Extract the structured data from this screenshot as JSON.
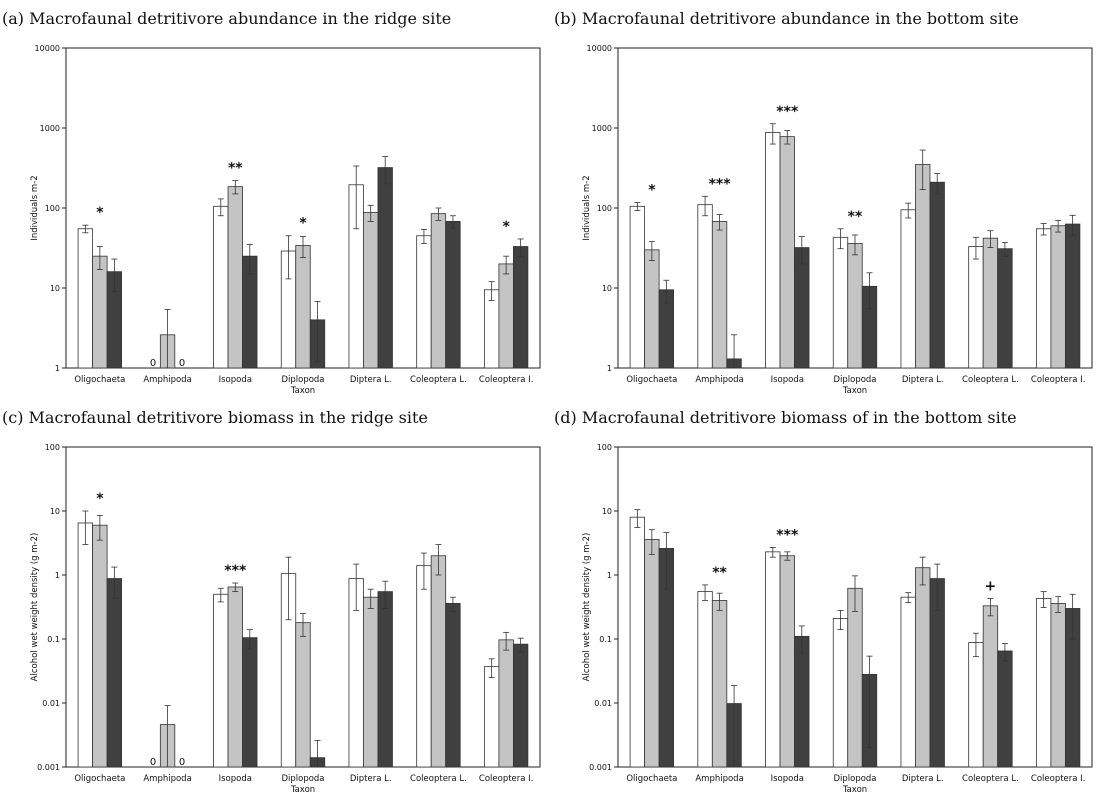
{
  "chart_data": [
    {
      "id": "a",
      "type": "bar",
      "title": "(a) Macrofaunal detritivore abundance in the ridge site",
      "xlabel": "Taxon",
      "ylabel": "Individuals m-2",
      "yscale": "log",
      "ylim": [
        1,
        10000
      ],
      "yticks": [
        "1",
        "10",
        "100",
        "1000",
        "10000"
      ],
      "categories": [
        "Oligochaeta",
        "Amphipoda",
        "Isopoda",
        "Diplopoda",
        "Diptera L.",
        "Coleoptera L.",
        "Coleoptera I."
      ],
      "series": [
        {
          "fill": "#ffffff",
          "values": [
            55,
            0,
            105,
            29,
            195,
            45,
            9.5
          ],
          "err": [
            6,
            0,
            25,
            16,
            140,
            9,
            2.5
          ]
        },
        {
          "fill": "#c4c4c4",
          "values": [
            25,
            2.6,
            185,
            34,
            88,
            85,
            20
          ],
          "err": [
            8,
            2.8,
            35,
            10,
            20,
            15,
            5
          ]
        },
        {
          "fill": "#404040",
          "values": [
            16,
            0,
            25,
            4,
            320,
            68,
            33
          ],
          "err": [
            7,
            0,
            10,
            2.8,
            120,
            12,
            8
          ]
        }
      ],
      "zero_labels": [
        "0",
        "0"
      ],
      "significance": [
        {
          "category": "Oligochaeta",
          "label": "*"
        },
        {
          "category": "Isopoda",
          "label": "**"
        },
        {
          "category": "Diplopoda",
          "label": "*"
        },
        {
          "category": "Coleoptera I.",
          "label": "*"
        }
      ]
    },
    {
      "id": "b",
      "type": "bar",
      "title": "(b) Macrofaunal detritivore abundance in the bottom site",
      "xlabel": "Taxon",
      "ylabel": "Individuals m-2",
      "yscale": "log",
      "ylim": [
        1,
        10000
      ],
      "yticks": [
        "1",
        "10",
        "100",
        "1000",
        "10000"
      ],
      "categories": [
        "Oligochaeta",
        "Amphipoda",
        "Isopoda",
        "Diplopoda",
        "Diptera L.",
        "Coleoptera L.",
        "Coleoptera I."
      ],
      "series": [
        {
          "fill": "#ffffff",
          "values": [
            105,
            110,
            880,
            43,
            95,
            33,
            55
          ],
          "err": [
            12,
            30,
            250,
            12,
            20,
            10,
            9
          ]
        },
        {
          "fill": "#c4c4c4",
          "values": [
            30,
            68,
            780,
            36,
            350,
            42,
            60
          ],
          "err": [
            8,
            15,
            150,
            10,
            180,
            10,
            10
          ]
        },
        {
          "fill": "#404040",
          "values": [
            9.5,
            1.3,
            32,
            10.5,
            210,
            31,
            63
          ],
          "err": [
            3,
            1.3,
            12,
            5,
            60,
            6,
            18
          ]
        }
      ],
      "zero_labels": [],
      "significance": [
        {
          "category": "Oligochaeta",
          "label": "*"
        },
        {
          "category": "Amphipoda",
          "label": "***"
        },
        {
          "category": "Isopoda",
          "label": "***"
        },
        {
          "category": "Diplopoda",
          "label": "**"
        }
      ]
    },
    {
      "id": "c",
      "type": "bar",
      "title": "(c) Macrofaunal detritivore biomass in the ridge site",
      "xlabel": "Taxon",
      "ylabel": "Alcohol wet weight density (g m-2)",
      "yscale": "log",
      "ylim": [
        0.001,
        100
      ],
      "yticks": [
        "0.001",
        "0.01",
        "0.1",
        "1",
        "10",
        "100"
      ],
      "categories": [
        "Oligochaeta",
        "Amphipoda",
        "Isopoda",
        "Diplopoda",
        "Diptera L.",
        "Coleoptera L.",
        "Coleoptera I."
      ],
      "series": [
        {
          "fill": "#ffffff",
          "values": [
            6.5,
            0,
            0.5,
            1.05,
            0.88,
            1.4,
            0.037
          ],
          "err": [
            3.5,
            0,
            0.12,
            0.85,
            0.6,
            0.8,
            0.012
          ]
        },
        {
          "fill": "#c4c4c4",
          "values": [
            6.0,
            0.0046,
            0.65,
            0.18,
            0.45,
            2.0,
            0.097
          ],
          "err": [
            2.5,
            0.0045,
            0.1,
            0.07,
            0.15,
            1.0,
            0.03
          ]
        },
        {
          "fill": "#404040",
          "values": [
            0.88,
            0,
            0.105,
            0.0014,
            0.55,
            0.36,
            0.083
          ],
          "err": [
            0.45,
            0,
            0.035,
            0.0012,
            0.25,
            0.09,
            0.02
          ]
        }
      ],
      "zero_labels": [
        "0",
        "0"
      ],
      "significance": [
        {
          "category": "Oligochaeta",
          "label": "*"
        },
        {
          "category": "Isopoda",
          "label": "***"
        }
      ]
    },
    {
      "id": "d",
      "type": "bar",
      "title": "(d) Macrofaunal detritivore biomass of in the bottom site",
      "xlabel": "Taxon",
      "ylabel": "Alcohol wet weight density (g m-2)",
      "yscale": "log",
      "ylim": [
        0.001,
        100
      ],
      "yticks": [
        "0.001",
        "0.01",
        "0.1",
        "1",
        "10",
        "100"
      ],
      "categories": [
        "Oligochaeta",
        "Amphipoda",
        "Isopoda",
        "Diplopoda",
        "Diptera L.",
        "Coleoptera L.",
        "Coleoptera I."
      ],
      "series": [
        {
          "fill": "#ffffff",
          "values": [
            8.0,
            0.55,
            2.3,
            0.21,
            0.45,
            0.088,
            0.43
          ],
          "err": [
            2.5,
            0.15,
            0.4,
            0.07,
            0.08,
            0.035,
            0.12
          ]
        },
        {
          "fill": "#c4c4c4",
          "values": [
            3.6,
            0.4,
            2.0,
            0.62,
            1.3,
            0.33,
            0.36
          ],
          "err": [
            1.5,
            0.12,
            0.3,
            0.35,
            0.6,
            0.1,
            0.1
          ]
        },
        {
          "fill": "#404040",
          "values": [
            2.6,
            0.0098,
            0.11,
            0.028,
            0.88,
            0.065,
            0.3
          ],
          "err": [
            2.0,
            0.009,
            0.05,
            0.026,
            0.6,
            0.02,
            0.2
          ]
        }
      ],
      "zero_labels": [],
      "significance": [
        {
          "category": "Amphipoda",
          "label": "**"
        },
        {
          "category": "Isopoda",
          "label": "***"
        },
        {
          "category": "Coleoptera L.",
          "label": "+"
        }
      ]
    }
  ]
}
